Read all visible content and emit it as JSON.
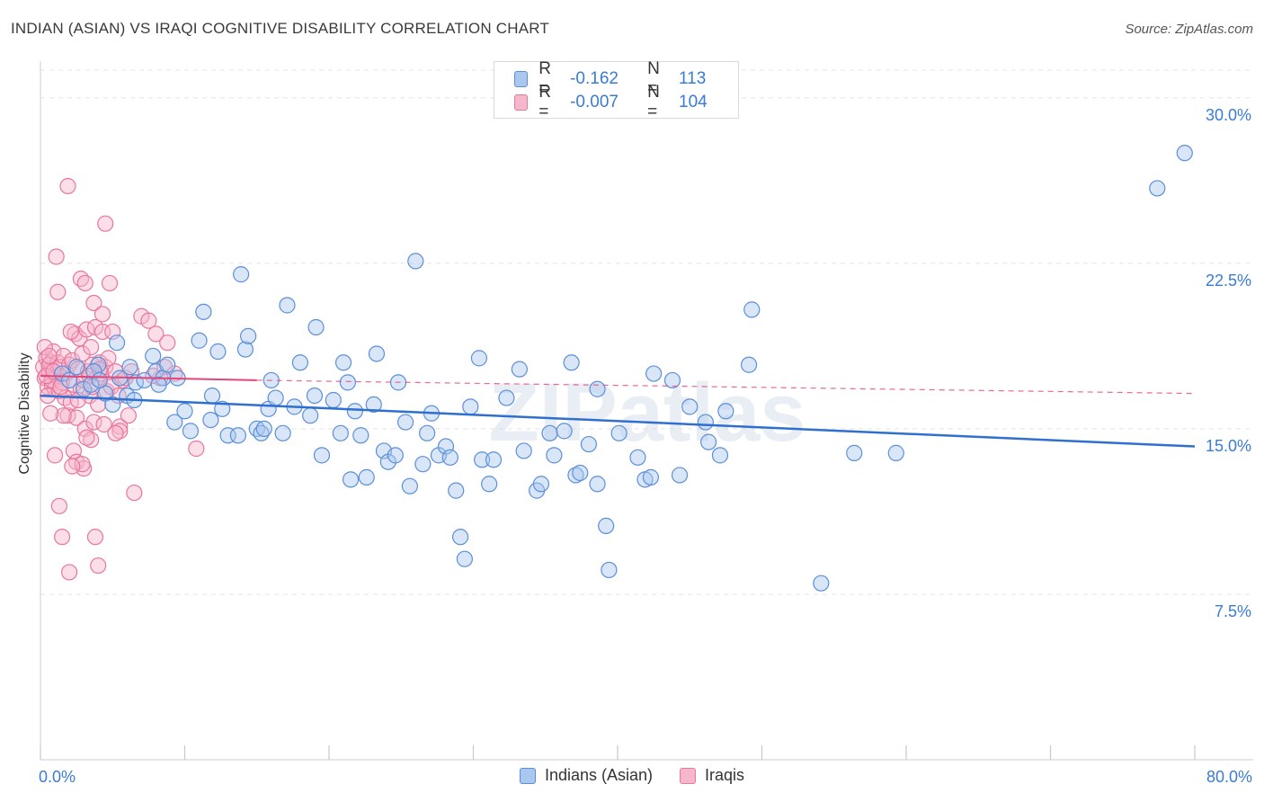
{
  "header": {
    "title": "INDIAN (ASIAN) VS IRAQI COGNITIVE DISABILITY CORRELATION CHART",
    "source": "Source: ZipAtlas.com"
  },
  "legend_top": {
    "rows": [
      {
        "r_label": "R =",
        "r_value": "-0.162",
        "n_label": "N =",
        "n_value": "113"
      },
      {
        "r_label": "R =",
        "r_value": "-0.007",
        "n_label": "N =",
        "n_value": "104"
      }
    ]
  },
  "legend_bottom": {
    "items": [
      {
        "label": "Indians (Asian)"
      },
      {
        "label": "Iraqis"
      }
    ]
  },
  "colors": {
    "blue_fill": "#a9c7ef",
    "blue_stroke": "#5b8fd9",
    "blue_line": "#2f6fcf",
    "pink_fill": "#f6b6cc",
    "pink_stroke": "#e8779c",
    "pink_line": "#e2467a",
    "tick_label": "#3a7bd5",
    "grid": "#e4e4e4"
  },
  "watermark": "ZIPatlas",
  "chart_data": {
    "type": "scatter",
    "title": "INDIAN (ASIAN) VS IRAQI COGNITIVE DISABILITY CORRELATION CHART",
    "xlabel": "",
    "ylabel": "Cognitive Disability",
    "xlim": [
      0,
      80
    ],
    "ylim": [
      0,
      31.5
    ],
    "x_tick_labels": [
      "0.0%",
      "80.0%"
    ],
    "y_ticks": [
      7.5,
      15.0,
      22.5,
      30.0
    ],
    "y_tick_labels": [
      "7.5%",
      "15.0%",
      "22.5%",
      "30.0%"
    ],
    "grid": true,
    "legend_position": "top-center",
    "series": [
      {
        "name": "Indians (Asian)",
        "r": -0.162,
        "n": 113,
        "trend": {
          "x": [
            0,
            80
          ],
          "y": [
            16.5,
            14.2
          ]
        },
        "points": [
          [
            1.5,
            17.5
          ],
          [
            2,
            17.2
          ],
          [
            2.5,
            17.8
          ],
          [
            3,
            16.8
          ],
          [
            3.5,
            17.0
          ],
          [
            4,
            17.9
          ],
          [
            4.5,
            16.6
          ],
          [
            5,
            16.1
          ],
          [
            5.5,
            17.3
          ],
          [
            6,
            16.5
          ],
          [
            6.5,
            16.3
          ],
          [
            5.3,
            18.9
          ],
          [
            6.2,
            17.8
          ],
          [
            6.6,
            17.1
          ],
          [
            7.2,
            17.2
          ],
          [
            7.8,
            18.3
          ],
          [
            8,
            17.6
          ],
          [
            8.5,
            17.3
          ],
          [
            8.8,
            17.9
          ],
          [
            9.5,
            17.3
          ],
          [
            9.3,
            15.3
          ],
          [
            10,
            15.8
          ],
          [
            10.4,
            14.9
          ],
          [
            11,
            19.0
          ],
          [
            11.3,
            20.3
          ],
          [
            11.8,
            15.4
          ],
          [
            12.3,
            18.5
          ],
          [
            12.6,
            15.9
          ],
          [
            13,
            14.7
          ],
          [
            13.7,
            14.7
          ],
          [
            13.9,
            22.0
          ],
          [
            14.2,
            18.6
          ],
          [
            14.4,
            19.2
          ],
          [
            15,
            15.0
          ],
          [
            15.3,
            14.8
          ],
          [
            15.5,
            15.0
          ],
          [
            15.8,
            15.9
          ],
          [
            16.3,
            16.4
          ],
          [
            16.8,
            14.8
          ],
          [
            17.1,
            20.6
          ],
          [
            17.6,
            16.0
          ],
          [
            18,
            18.0
          ],
          [
            18.7,
            15.6
          ],
          [
            19,
            16.5
          ],
          [
            19.1,
            19.6
          ],
          [
            19.5,
            13.8
          ],
          [
            20.3,
            16.3
          ],
          [
            20.8,
            14.8
          ],
          [
            21,
            18.0
          ],
          [
            21.3,
            17.1
          ],
          [
            21.5,
            12.7
          ],
          [
            21.8,
            15.8
          ],
          [
            22.2,
            14.7
          ],
          [
            22.6,
            12.8
          ],
          [
            23.1,
            16.1
          ],
          [
            23.3,
            18.4
          ],
          [
            23.8,
            14.0
          ],
          [
            24.1,
            13.5
          ],
          [
            24.6,
            13.8
          ],
          [
            25.3,
            15.3
          ],
          [
            25.6,
            12.4
          ],
          [
            26,
            22.6
          ],
          [
            26.5,
            13.4
          ],
          [
            26.8,
            14.8
          ],
          [
            27.1,
            15.7
          ],
          [
            27.6,
            13.8
          ],
          [
            28.1,
            14.2
          ],
          [
            28.4,
            13.7
          ],
          [
            28.8,
            12.2
          ],
          [
            29.1,
            10.1
          ],
          [
            29.4,
            9.1
          ],
          [
            29.8,
            16.0
          ],
          [
            30.4,
            18.2
          ],
          [
            30.6,
            13.6
          ],
          [
            31.1,
            12.5
          ],
          [
            31.4,
            13.6
          ],
          [
            33.2,
            17.7
          ],
          [
            33.5,
            14.0
          ],
          [
            34.4,
            12.2
          ],
          [
            34.7,
            12.5
          ],
          [
            35.3,
            14.8
          ],
          [
            35.6,
            13.8
          ],
          [
            36.3,
            14.9
          ],
          [
            37.1,
            12.9
          ],
          [
            37.4,
            13.0
          ],
          [
            38,
            14.3
          ],
          [
            38.6,
            12.5
          ],
          [
            39.2,
            10.6
          ],
          [
            39.4,
            8.6
          ],
          [
            40.1,
            14.8
          ],
          [
            41.4,
            13.7
          ],
          [
            41.9,
            12.7
          ],
          [
            42.3,
            12.8
          ],
          [
            42.5,
            17.5
          ],
          [
            43.8,
            17.2
          ],
          [
            44.3,
            12.9
          ],
          [
            46.1,
            15.3
          ],
          [
            46.3,
            14.4
          ],
          [
            47.1,
            13.8
          ],
          [
            49.3,
            20.4
          ],
          [
            49.1,
            17.9
          ],
          [
            54.1,
            8.0
          ],
          [
            56.4,
            13.9
          ],
          [
            59.3,
            13.9
          ],
          [
            77.4,
            25.9
          ],
          [
            79.3,
            27.5
          ],
          [
            3.7,
            17.6
          ],
          [
            4.1,
            17.2
          ],
          [
            8.2,
            17.0
          ],
          [
            11.9,
            16.5
          ],
          [
            16,
            17.2
          ],
          [
            24.8,
            17.1
          ],
          [
            32.3,
            16.4
          ],
          [
            36.8,
            18.0
          ],
          [
            45,
            16.0
          ],
          [
            38.6,
            16.8
          ],
          [
            47.5,
            15.8
          ]
        ]
      },
      {
        "name": "Iraqis",
        "r": -0.007,
        "n": 104,
        "trend": {
          "x": [
            0,
            15
          ],
          "y": [
            17.4,
            17.2
          ]
        },
        "trend_dashed": {
          "x": [
            15,
            80
          ],
          "y": [
            17.2,
            16.6
          ]
        },
        "points": [
          [
            0.2,
            17.8
          ],
          [
            0.3,
            17.3
          ],
          [
            0.4,
            18.2
          ],
          [
            0.5,
            16.9
          ],
          [
            0.6,
            17.6
          ],
          [
            0.7,
            18.0
          ],
          [
            0.8,
            17.0
          ],
          [
            0.9,
            18.5
          ],
          [
            1.0,
            16.8
          ],
          [
            1.1,
            17.4
          ],
          [
            0.3,
            18.7
          ],
          [
            0.5,
            16.5
          ],
          [
            0.6,
            17.9
          ],
          [
            0.8,
            17.2
          ],
          [
            1.2,
            18.0
          ],
          [
            1.3,
            16.7
          ],
          [
            1.4,
            17.8
          ],
          [
            1.5,
            17.1
          ],
          [
            1.6,
            18.3
          ],
          [
            1.7,
            16.4
          ],
          [
            1.8,
            17.5
          ],
          [
            1.9,
            15.6
          ],
          [
            2.0,
            17.9
          ],
          [
            2.1,
            16.2
          ],
          [
            2.2,
            18.1
          ],
          [
            2.3,
            17.0
          ],
          [
            2.4,
            19.3
          ],
          [
            2.5,
            15.5
          ],
          [
            2.6,
            17.7
          ],
          [
            2.7,
            19.1
          ],
          [
            2.8,
            16.8
          ],
          [
            2.9,
            18.4
          ],
          [
            3.0,
            17.2
          ],
          [
            3.1,
            15.0
          ],
          [
            3.2,
            19.5
          ],
          [
            3.3,
            17.6
          ],
          [
            3.4,
            16.5
          ],
          [
            3.5,
            18.7
          ],
          [
            3.6,
            17.9
          ],
          [
            3.7,
            15.3
          ],
          [
            3.8,
            19.6
          ],
          [
            3.9,
            17.3
          ],
          [
            4.0,
            16.1
          ],
          [
            4.1,
            18.0
          ],
          [
            4.2,
            17.5
          ],
          [
            4.3,
            19.4
          ],
          [
            4.4,
            15.2
          ],
          [
            4.5,
            17.8
          ],
          [
            4.6,
            16.7
          ],
          [
            4.7,
            18.2
          ],
          [
            1.0,
            13.8
          ],
          [
            1.3,
            11.5
          ],
          [
            1.5,
            10.1
          ],
          [
            2.0,
            8.5
          ],
          [
            2.3,
            14.0
          ],
          [
            2.5,
            13.5
          ],
          [
            3.0,
            13.2
          ],
          [
            3.5,
            14.5
          ],
          [
            3.8,
            10.1
          ],
          [
            4.0,
            8.8
          ],
          [
            1.2,
            21.2
          ],
          [
            1.1,
            22.8
          ],
          [
            1.9,
            26.0
          ],
          [
            2.8,
            21.8
          ],
          [
            3.1,
            21.6
          ],
          [
            3.7,
            20.7
          ],
          [
            4.3,
            20.2
          ],
          [
            4.5,
            24.3
          ],
          [
            4.8,
            21.6
          ],
          [
            5.0,
            19.4
          ],
          [
            5.2,
            17.6
          ],
          [
            5.5,
            15.1
          ],
          [
            5.7,
            17.2
          ],
          [
            5.9,
            17.3
          ],
          [
            6.1,
            15.6
          ],
          [
            6.5,
            12.1
          ],
          [
            7.0,
            20.1
          ],
          [
            7.5,
            19.9
          ],
          [
            8.0,
            19.3
          ],
          [
            8.3,
            17.3
          ],
          [
            8.6,
            17.8
          ],
          [
            8.8,
            18.9
          ],
          [
            9.3,
            17.5
          ],
          [
            10.8,
            14.1
          ],
          [
            5.5,
            14.9
          ],
          [
            5.2,
            14.8
          ],
          [
            3.2,
            14.6
          ],
          [
            2.9,
            13.4
          ],
          [
            2.2,
            13.3
          ],
          [
            1.6,
            15.6
          ],
          [
            0.4,
            17.4
          ],
          [
            0.6,
            18.3
          ],
          [
            0.9,
            17.6
          ],
          [
            1.4,
            16.9
          ],
          [
            2.6,
            16.3
          ],
          [
            3.4,
            17.4
          ],
          [
            4.1,
            17.7
          ],
          [
            4.9,
            16.9
          ],
          [
            6.3,
            17.6
          ],
          [
            7.8,
            17.4
          ],
          [
            0.7,
            15.7
          ],
          [
            2.1,
            19.4
          ],
          [
            3.6,
            16.9
          ],
          [
            5.4,
            16.5
          ]
        ]
      }
    ]
  }
}
